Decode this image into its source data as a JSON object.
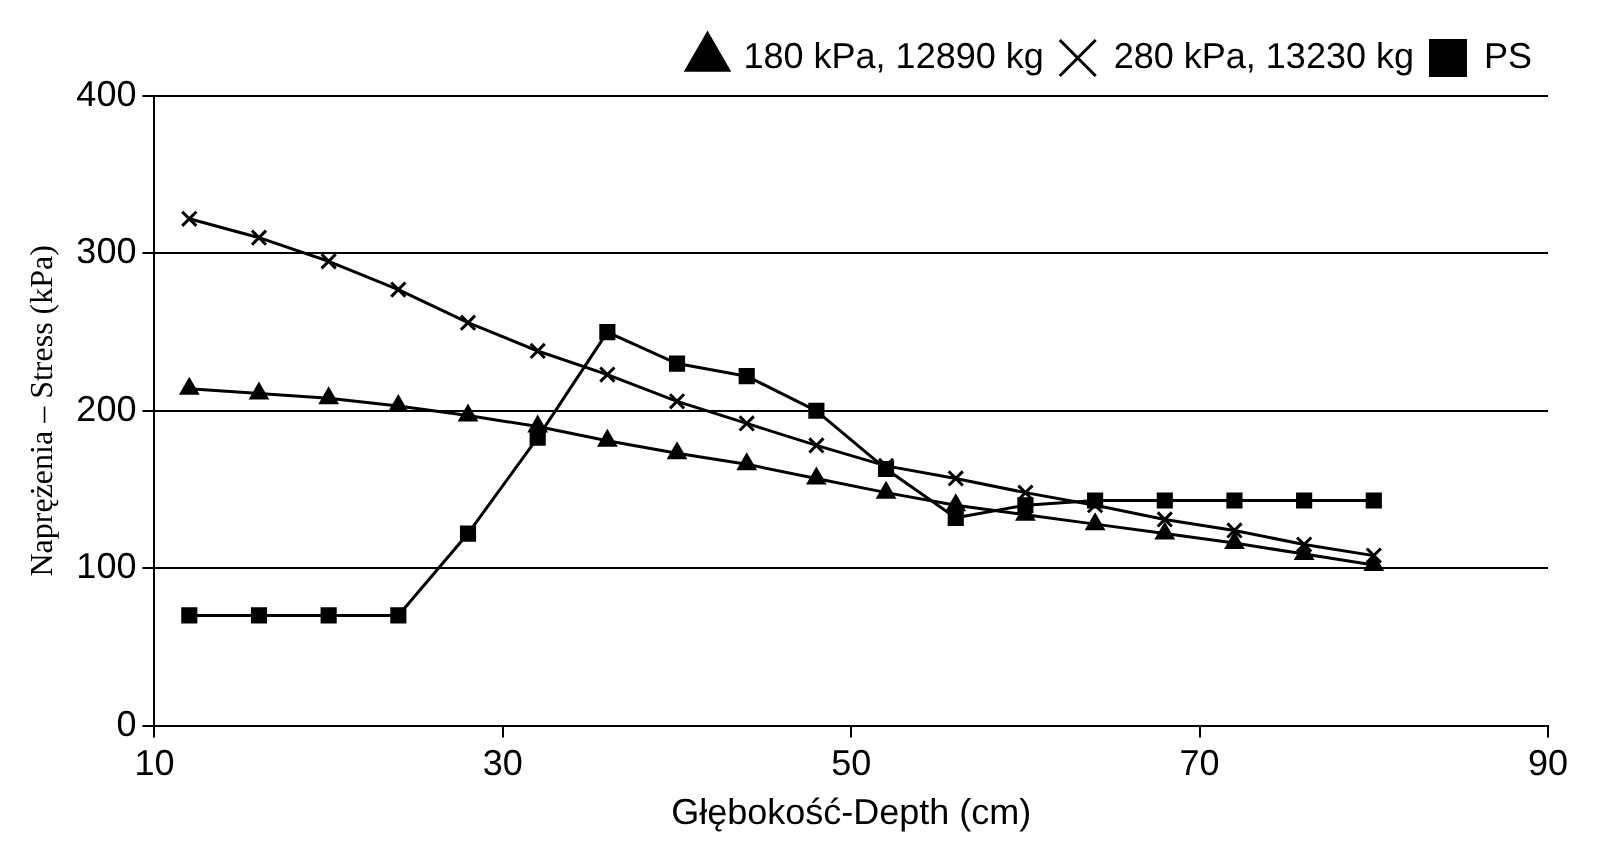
{
  "chart_data": {
    "type": "line",
    "xlabel": "Głębokość-Depth (cm)",
    "ylabel": "Naprężenia – Stress (kPa)",
    "x": [
      12,
      16,
      20,
      24,
      28,
      32,
      36,
      40,
      44,
      48,
      52,
      56,
      60,
      64,
      68,
      72,
      76,
      80
    ],
    "series": [
      {
        "name": "180 kPa, 12890 kg",
        "color": "#000000",
        "marker": "triangle",
        "values": [
          214,
          211,
          208,
          203,
          197,
          190,
          181,
          173,
          166,
          157,
          148,
          140,
          134,
          128,
          122,
          116,
          109,
          102
        ]
      },
      {
        "name": "280 kPa, 13230 kg",
        "color": "#000000",
        "marker": "cross",
        "values": [
          322,
          310,
          295,
          277,
          256,
          238,
          223,
          206,
          192,
          178,
          165,
          157,
          148,
          140,
          131,
          124,
          115,
          108
        ]
      },
      {
        "name": "PS",
        "color": "#000000",
        "marker": "square",
        "values": [
          70,
          70,
          70,
          70,
          122,
          183,
          250,
          230,
          222,
          200,
          163,
          132,
          140,
          143,
          143,
          143,
          143,
          143
        ]
      }
    ],
    "xlim": [
      10,
      90
    ],
    "xticks": [
      10,
      30,
      50,
      70,
      90
    ],
    "ylim": [
      0,
      400
    ],
    "yticks": [
      0,
      100,
      200,
      300,
      400
    ],
    "grid": "y",
    "legend": "top right",
    "line_style": "solid"
  }
}
